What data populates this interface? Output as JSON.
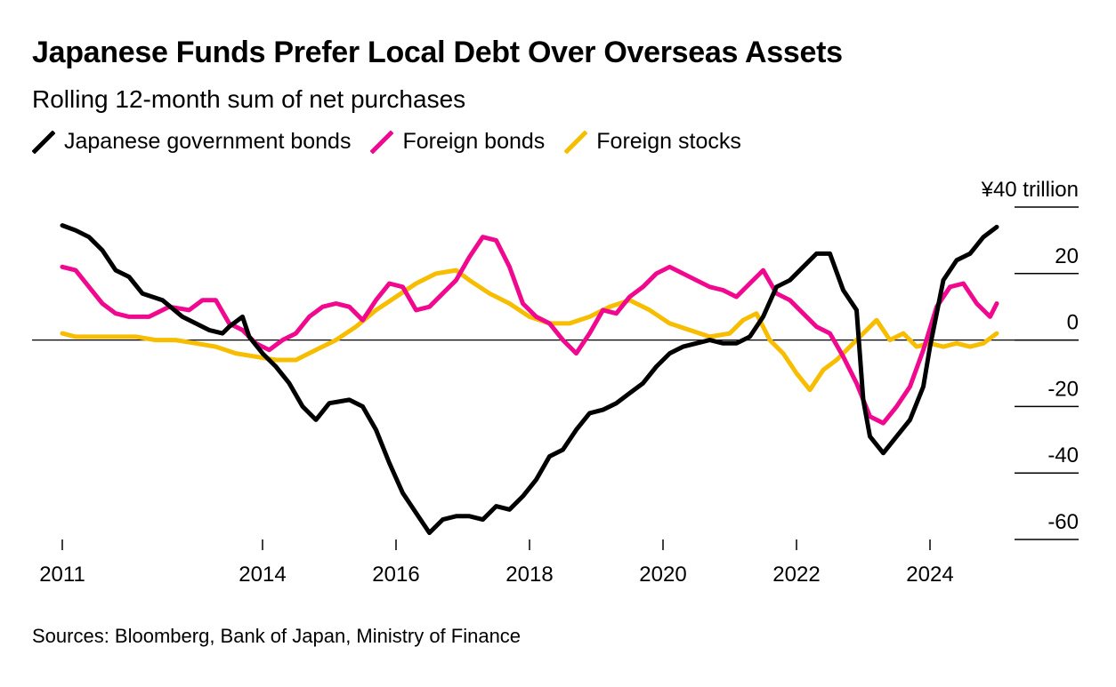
{
  "title": "Japanese Funds Prefer Local Debt Over Overseas Assets",
  "subtitle": "Rolling 12-month sum of net purchases",
  "source": "Sources: Bloomberg, Bank of Japan, Ministry of Finance",
  "chart_data": {
    "type": "line",
    "title": "Japanese Funds Prefer Local Debt Over Overseas Assets",
    "subtitle": "Rolling 12-month sum of net purchases",
    "y_unit_label": "¥40 trillion",
    "ylim": [
      -60,
      40
    ],
    "y_ticks": [
      40,
      20,
      0,
      -20,
      -40,
      -60
    ],
    "y_tick_labels": [
      "¥40 trillion",
      "20",
      "0",
      "-20",
      "-40",
      "-60"
    ],
    "xlim": [
      2011,
      2025.3
    ],
    "x_ticks": [
      2011,
      2014,
      2016,
      2018,
      2020,
      2022,
      2024
    ],
    "x_tick_labels": [
      "2011",
      "2014",
      "2016",
      "2018",
      "2020",
      "2022",
      "2024"
    ],
    "grid": false,
    "legend_position": "top-left",
    "series": [
      {
        "name": "Japanese government bonds",
        "color": "#000000",
        "points": [
          [
            2011.0,
            34.5
          ],
          [
            2011.2,
            33
          ],
          [
            2011.4,
            31
          ],
          [
            2011.6,
            27
          ],
          [
            2011.8,
            21
          ],
          [
            2012.0,
            19
          ],
          [
            2012.2,
            14
          ],
          [
            2012.5,
            12
          ],
          [
            2012.8,
            7
          ],
          [
            2013.0,
            5
          ],
          [
            2013.2,
            3
          ],
          [
            2013.4,
            2
          ],
          [
            2013.5,
            4
          ],
          [
            2013.7,
            7
          ],
          [
            2013.8,
            1
          ],
          [
            2014.0,
            -4
          ],
          [
            2014.2,
            -8
          ],
          [
            2014.4,
            -13
          ],
          [
            2014.6,
            -20
          ],
          [
            2014.8,
            -24
          ],
          [
            2015.0,
            -19
          ],
          [
            2015.3,
            -18
          ],
          [
            2015.5,
            -20
          ],
          [
            2015.7,
            -27
          ],
          [
            2015.9,
            -37
          ],
          [
            2016.1,
            -46
          ],
          [
            2016.3,
            -52
          ],
          [
            2016.5,
            -58
          ],
          [
            2016.7,
            -54
          ],
          [
            2016.9,
            -53
          ],
          [
            2017.1,
            -53
          ],
          [
            2017.3,
            -54
          ],
          [
            2017.5,
            -50
          ],
          [
            2017.7,
            -51
          ],
          [
            2017.9,
            -47
          ],
          [
            2018.1,
            -42
          ],
          [
            2018.3,
            -35
          ],
          [
            2018.5,
            -33
          ],
          [
            2018.7,
            -27
          ],
          [
            2018.9,
            -22
          ],
          [
            2019.1,
            -21
          ],
          [
            2019.3,
            -19
          ],
          [
            2019.5,
            -16
          ],
          [
            2019.7,
            -13
          ],
          [
            2019.9,
            -8
          ],
          [
            2020.1,
            -4
          ],
          [
            2020.3,
            -2
          ],
          [
            2020.5,
            -1
          ],
          [
            2020.7,
            0
          ],
          [
            2020.9,
            -1
          ],
          [
            2021.1,
            -1
          ],
          [
            2021.3,
            1
          ],
          [
            2021.5,
            7
          ],
          [
            2021.7,
            16
          ],
          [
            2021.9,
            18
          ],
          [
            2022.1,
            22
          ],
          [
            2022.3,
            26
          ],
          [
            2022.5,
            26
          ],
          [
            2022.7,
            15
          ],
          [
            2022.9,
            9
          ],
          [
            2023.0,
            -18
          ],
          [
            2023.1,
            -29
          ],
          [
            2023.3,
            -34
          ],
          [
            2023.5,
            -29
          ],
          [
            2023.7,
            -24
          ],
          [
            2023.9,
            -14
          ],
          [
            2024.0,
            -2
          ],
          [
            2024.2,
            18
          ],
          [
            2024.4,
            24
          ],
          [
            2024.6,
            26
          ],
          [
            2024.8,
            31
          ],
          [
            2025.0,
            34
          ]
        ]
      },
      {
        "name": "Foreign bonds",
        "color": "#f0098e",
        "points": [
          [
            2011.0,
            22
          ],
          [
            2011.2,
            21
          ],
          [
            2011.4,
            16
          ],
          [
            2011.6,
            11
          ],
          [
            2011.8,
            8
          ],
          [
            2012.0,
            7
          ],
          [
            2012.3,
            7
          ],
          [
            2012.6,
            10
          ],
          [
            2012.9,
            9
          ],
          [
            2013.1,
            12
          ],
          [
            2013.3,
            12
          ],
          [
            2013.5,
            5
          ],
          [
            2013.7,
            3
          ],
          [
            2013.9,
            -1
          ],
          [
            2014.1,
            -3
          ],
          [
            2014.3,
            0
          ],
          [
            2014.5,
            2
          ],
          [
            2014.7,
            7
          ],
          [
            2014.9,
            10
          ],
          [
            2015.1,
            11
          ],
          [
            2015.3,
            10
          ],
          [
            2015.5,
            6
          ],
          [
            2015.7,
            12
          ],
          [
            2015.9,
            17
          ],
          [
            2016.1,
            16
          ],
          [
            2016.3,
            9
          ],
          [
            2016.5,
            10
          ],
          [
            2016.7,
            14
          ],
          [
            2016.9,
            18
          ],
          [
            2017.1,
            25
          ],
          [
            2017.3,
            31
          ],
          [
            2017.5,
            30
          ],
          [
            2017.7,
            22
          ],
          [
            2017.9,
            11
          ],
          [
            2018.1,
            7
          ],
          [
            2018.3,
            5
          ],
          [
            2018.5,
            0
          ],
          [
            2018.7,
            -4
          ],
          [
            2018.9,
            2
          ],
          [
            2019.1,
            9
          ],
          [
            2019.3,
            8
          ],
          [
            2019.5,
            13
          ],
          [
            2019.7,
            16
          ],
          [
            2019.9,
            20
          ],
          [
            2020.1,
            22
          ],
          [
            2020.3,
            20
          ],
          [
            2020.5,
            18
          ],
          [
            2020.7,
            16
          ],
          [
            2020.9,
            15
          ],
          [
            2021.1,
            13
          ],
          [
            2021.3,
            17
          ],
          [
            2021.5,
            21
          ],
          [
            2021.7,
            14
          ],
          [
            2021.9,
            12
          ],
          [
            2022.1,
            8
          ],
          [
            2022.3,
            4
          ],
          [
            2022.5,
            2
          ],
          [
            2022.7,
            -5
          ],
          [
            2022.9,
            -13
          ],
          [
            2023.1,
            -23
          ],
          [
            2023.3,
            -25
          ],
          [
            2023.5,
            -20
          ],
          [
            2023.7,
            -14
          ],
          [
            2023.9,
            -3
          ],
          [
            2024.1,
            10
          ],
          [
            2024.3,
            16
          ],
          [
            2024.5,
            17
          ],
          [
            2024.7,
            11
          ],
          [
            2024.9,
            7
          ],
          [
            2025.0,
            11
          ]
        ]
      },
      {
        "name": "Foreign stocks",
        "color": "#f7bd00",
        "points": [
          [
            2011.0,
            2
          ],
          [
            2011.2,
            1
          ],
          [
            2011.5,
            1
          ],
          [
            2011.8,
            1
          ],
          [
            2012.1,
            1
          ],
          [
            2012.4,
            0
          ],
          [
            2012.7,
            0
          ],
          [
            2013.0,
            -1
          ],
          [
            2013.3,
            -2
          ],
          [
            2013.6,
            -4
          ],
          [
            2013.9,
            -5
          ],
          [
            2014.2,
            -6
          ],
          [
            2014.5,
            -6
          ],
          [
            2014.8,
            -3
          ],
          [
            2015.1,
            0
          ],
          [
            2015.4,
            4
          ],
          [
            2015.7,
            9
          ],
          [
            2016.0,
            13
          ],
          [
            2016.3,
            17
          ],
          [
            2016.6,
            20
          ],
          [
            2016.9,
            21
          ],
          [
            2017.1,
            18
          ],
          [
            2017.4,
            14
          ],
          [
            2017.7,
            11
          ],
          [
            2018.0,
            7
          ],
          [
            2018.3,
            5
          ],
          [
            2018.6,
            5
          ],
          [
            2018.9,
            7
          ],
          [
            2019.2,
            10
          ],
          [
            2019.5,
            12
          ],
          [
            2019.8,
            9
          ],
          [
            2020.1,
            5
          ],
          [
            2020.4,
            3
          ],
          [
            2020.7,
            1
          ],
          [
            2021.0,
            2
          ],
          [
            2021.2,
            6
          ],
          [
            2021.4,
            8
          ],
          [
            2021.6,
            0
          ],
          [
            2021.8,
            -4
          ],
          [
            2022.0,
            -10
          ],
          [
            2022.2,
            -15
          ],
          [
            2022.4,
            -9
          ],
          [
            2022.6,
            -6
          ],
          [
            2022.8,
            -2
          ],
          [
            2023.0,
            2
          ],
          [
            2023.2,
            6
          ],
          [
            2023.4,
            0
          ],
          [
            2023.6,
            2
          ],
          [
            2023.8,
            -2
          ],
          [
            2024.0,
            -1
          ],
          [
            2024.2,
            -2
          ],
          [
            2024.4,
            -1
          ],
          [
            2024.6,
            -2
          ],
          [
            2024.8,
            -1
          ],
          [
            2025.0,
            2
          ]
        ]
      }
    ]
  }
}
